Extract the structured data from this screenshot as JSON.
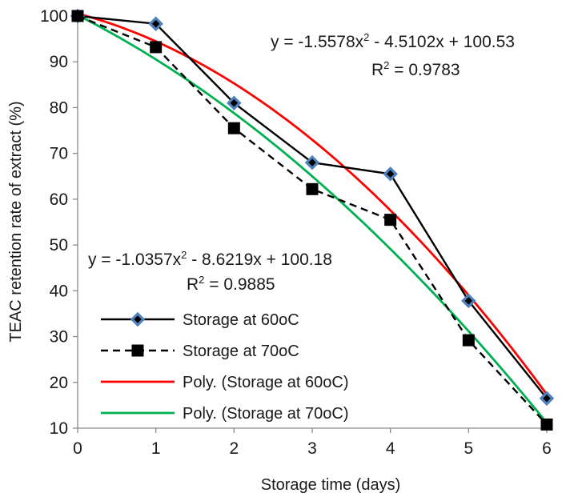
{
  "chart_data": {
    "type": "line",
    "xlabel": "Storage time (days)",
    "ylabel": "TEAC retention rate of extract (%)",
    "xlim": [
      0,
      6
    ],
    "ylim": [
      10,
      100
    ],
    "x_ticks": [
      "0",
      "1",
      "2",
      "3",
      "4",
      "5",
      "6"
    ],
    "y_ticks": [
      "10",
      "20",
      "30",
      "40",
      "50",
      "60",
      "70",
      "80",
      "90",
      "100"
    ],
    "grid": false,
    "legend_position": "bottom-left",
    "series": [
      {
        "name": "Storage at 60oC",
        "style": "solid",
        "marker": "diamond",
        "color": "#000000",
        "marker_fill": "#4f81bd",
        "x": [
          0,
          1,
          2,
          3,
          4,
          5,
          6
        ],
        "values": [
          100,
          98.3,
          81,
          68,
          65.5,
          37.8,
          16.5
        ]
      },
      {
        "name": "Storage at 70oC",
        "style": "dashed",
        "marker": "square",
        "color": "#000000",
        "marker_fill": "#000000",
        "x": [
          0,
          1,
          2,
          3,
          4,
          5,
          6
        ],
        "values": [
          100,
          93.2,
          75.5,
          62.2,
          55.5,
          29.2,
          10.8
        ]
      },
      {
        "name": "Poly. (Storage at 60oC)",
        "style": "trendline",
        "color": "#ff0000",
        "coefficients": {
          "a": -1.5578,
          "b": -4.5102,
          "c": 100.53
        }
      },
      {
        "name": "Poly. (Storage at 70oC)",
        "style": "trendline",
        "color": "#00b050",
        "coefficients": {
          "a": -1.0357,
          "b": -8.6219,
          "c": 100.18
        }
      }
    ],
    "annotations": {
      "eq60": "y = -1.5578x",
      "eq60_rest": " - 4.5102x + 100.53",
      "r2_60_prefix": "R",
      "r2_60_rest": " = 0.9783",
      "eq70": "y = -1.0357x",
      "eq70_rest": " - 8.6219x + 100.18",
      "r2_70_prefix": "R",
      "r2_70_rest": " = 0.9885",
      "superscript": "2"
    }
  }
}
